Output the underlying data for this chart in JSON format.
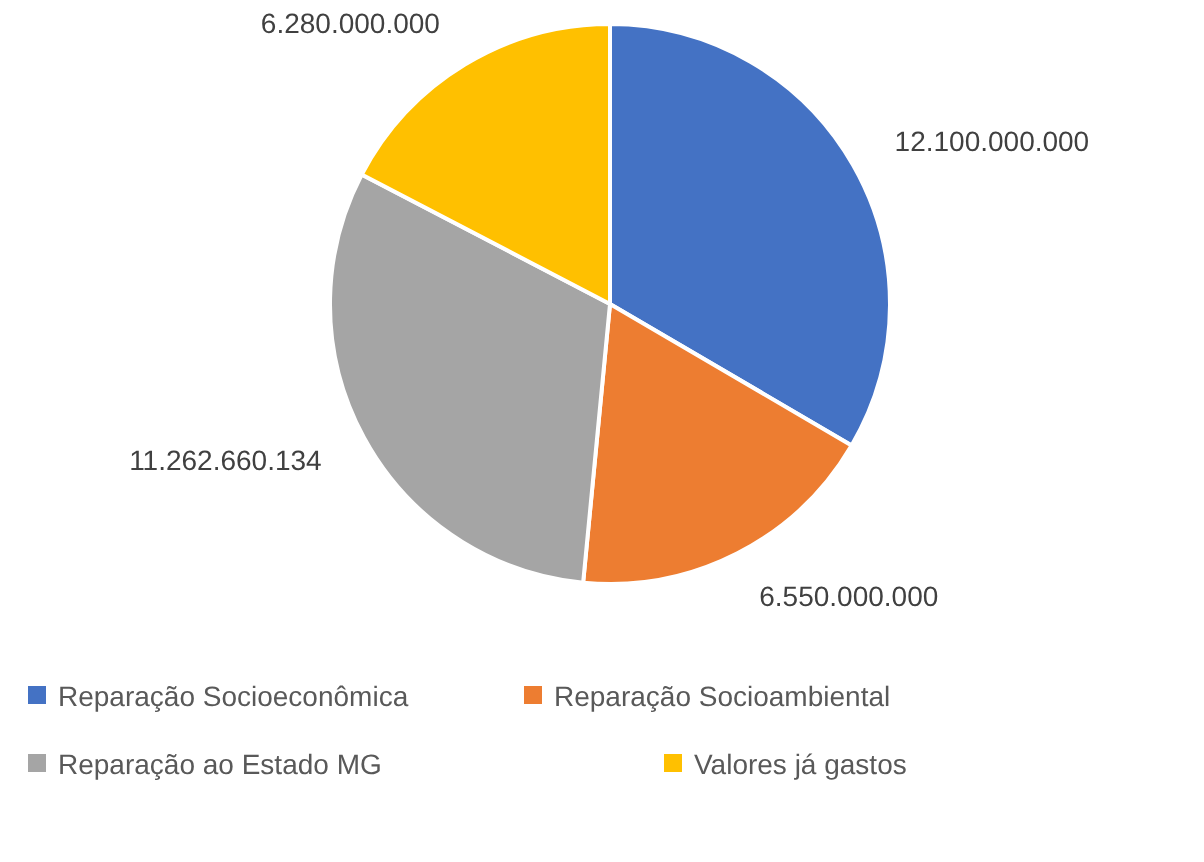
{
  "chart_data": {
    "type": "pie",
    "categories": [
      "Reparação Socioeconômica",
      "Reparação Socioambiental",
      "Reparação ao Estado MG",
      "Valores já gastos"
    ],
    "values": [
      12100000000,
      6550000000,
      11262660134,
      6280000000
    ],
    "colors": [
      "#4472c4",
      "#ed7d31",
      "#a5a5a5",
      "#ffc000"
    ],
    "value_labels": [
      "12.100.000.000",
      "6.550.000.000",
      "11.262.660.134",
      "6.280.000.000"
    ],
    "legend": "bottom"
  }
}
